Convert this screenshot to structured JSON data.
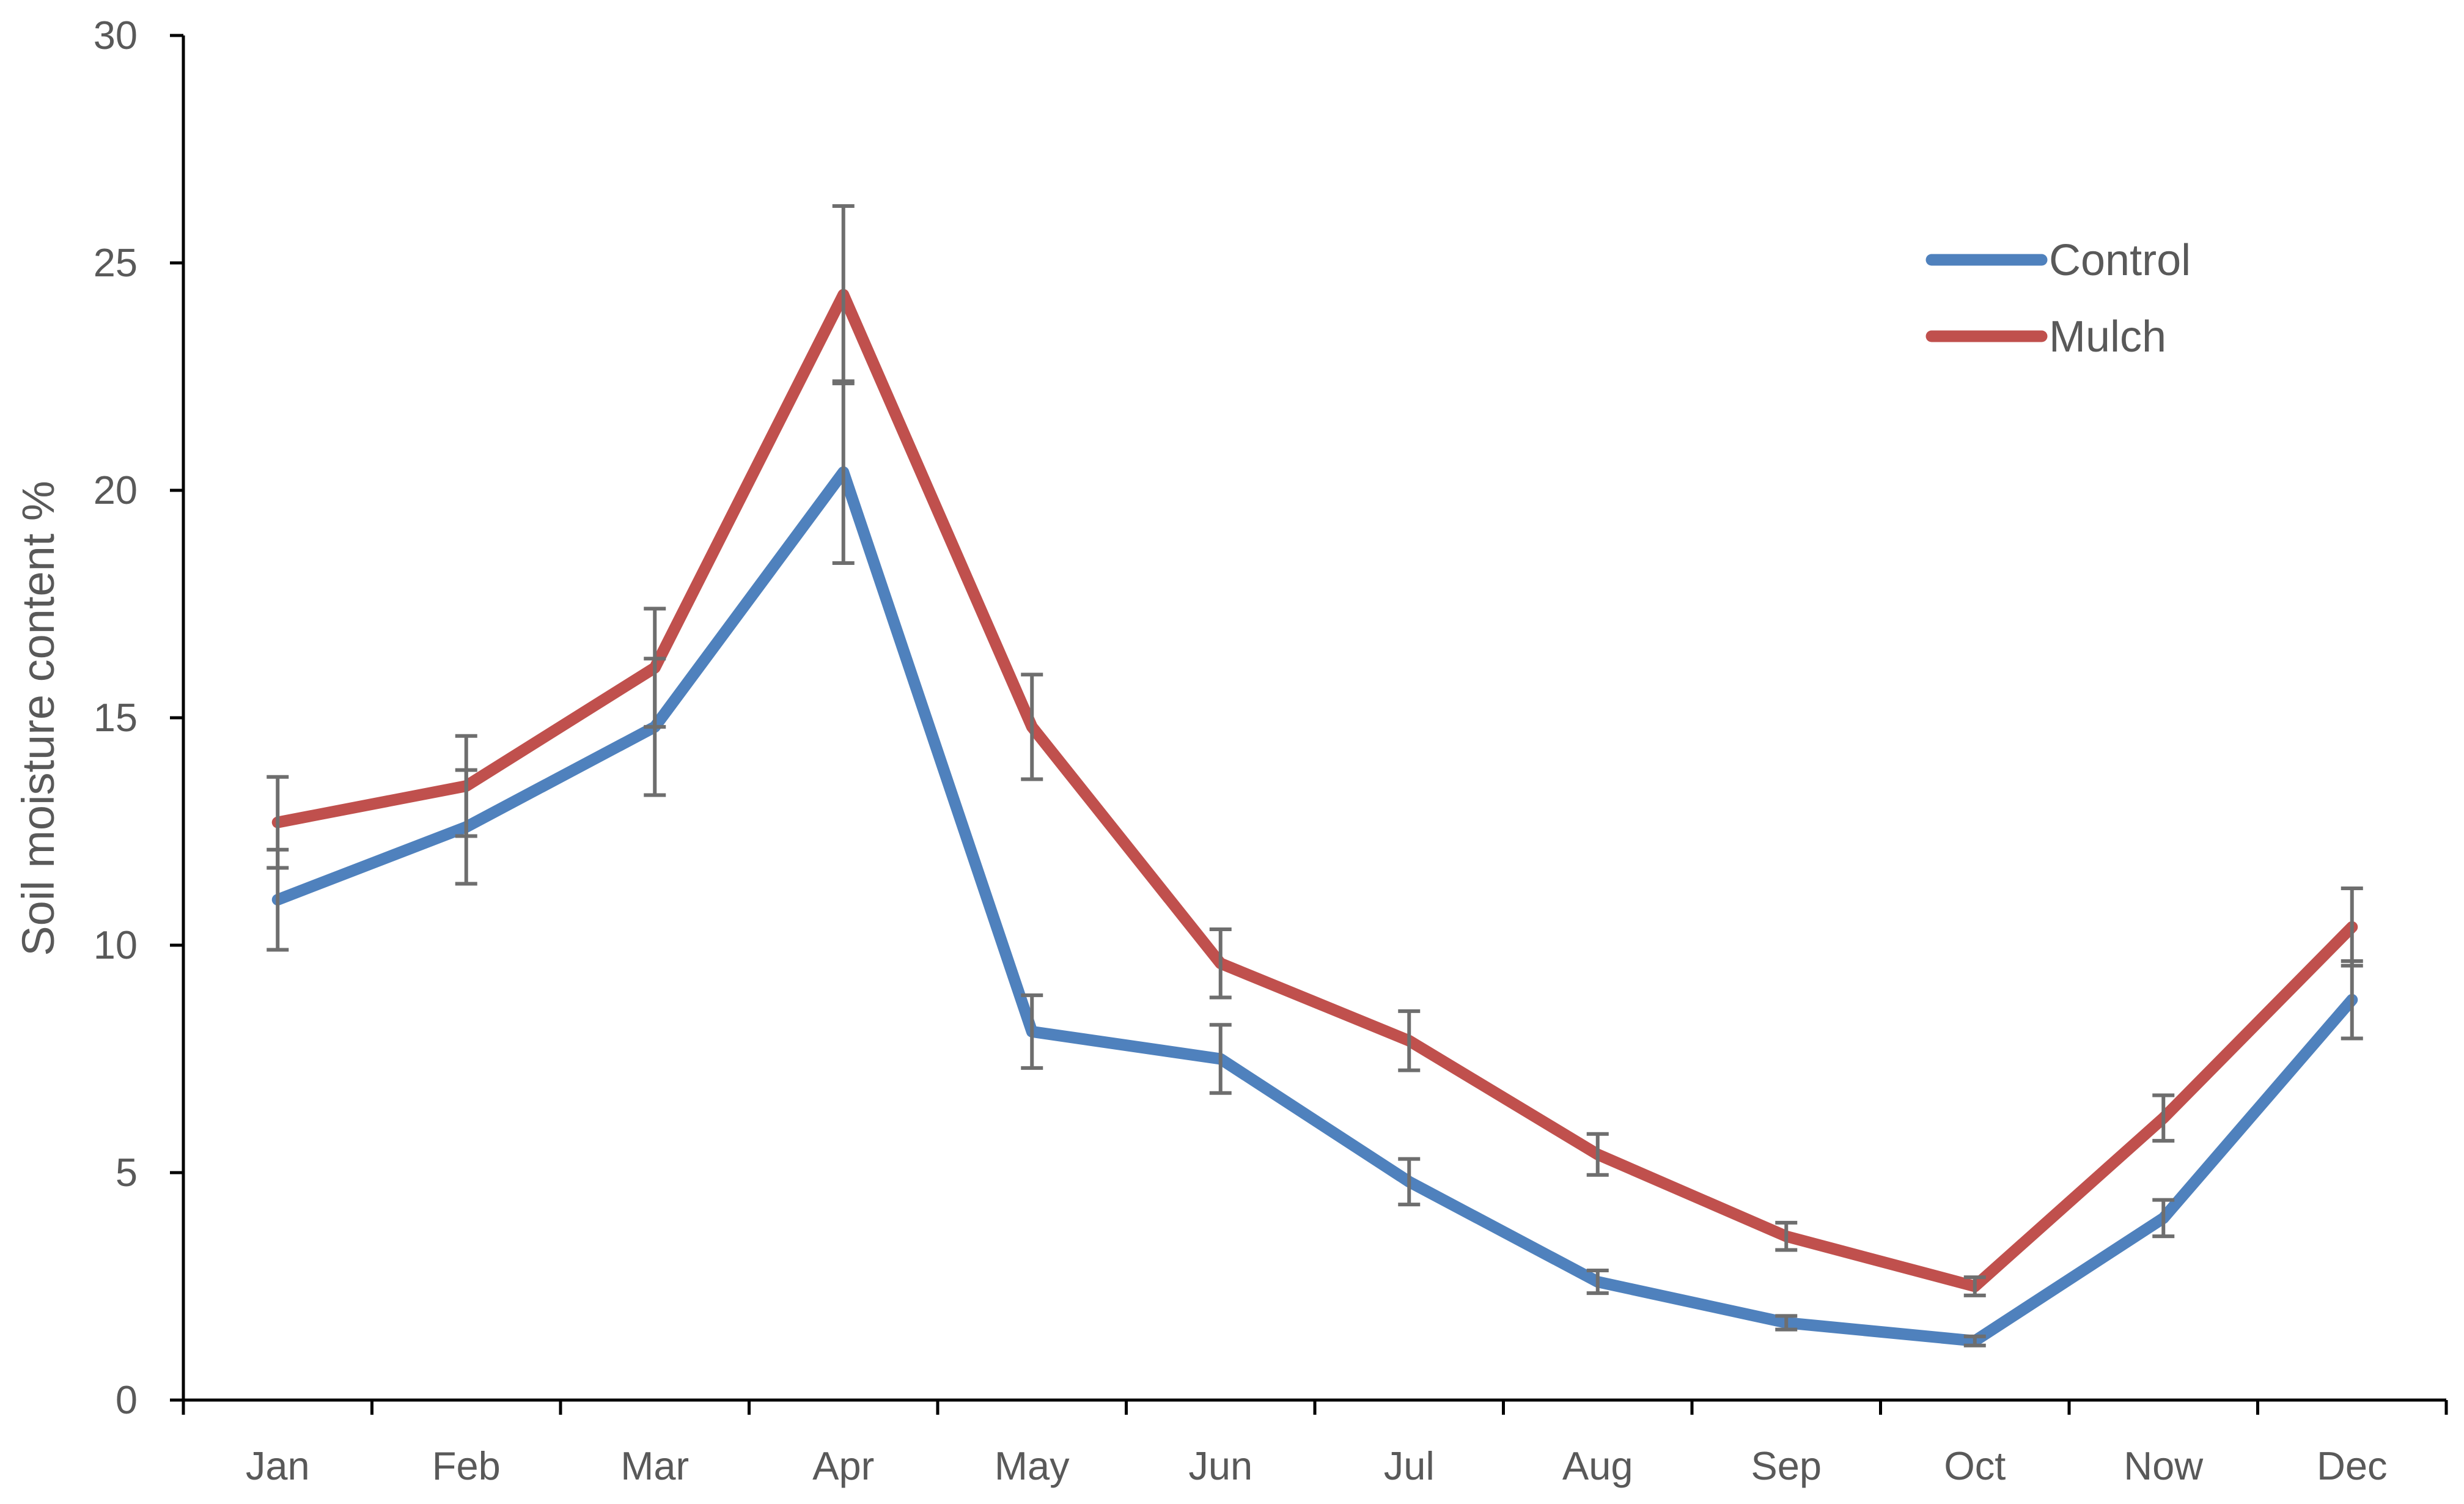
{
  "chart_data": {
    "type": "line",
    "title": "",
    "xlabel": "",
    "ylabel": "Soil moisture content %",
    "ylim": [
      0,
      30
    ],
    "yticks": [
      0,
      5,
      10,
      15,
      20,
      25,
      30
    ],
    "categories": [
      "Jan",
      "Feb",
      "Mar",
      "Apr",
      "May",
      "Jun",
      "Jul",
      "Aug",
      "Sep",
      "Oct",
      "Now",
      "Dec"
    ],
    "grid": false,
    "legend_position": "top-right",
    "series": [
      {
        "name": "Control",
        "color": "#4F81BD",
        "values": [
          11.0,
          12.6,
          14.8,
          20.4,
          8.1,
          7.5,
          4.8,
          2.6,
          1.7,
          1.3,
          4.0,
          8.8
        ],
        "error": [
          1.1,
          1.25,
          1.5,
          2.0,
          0.8,
          0.75,
          0.5,
          0.25,
          0.15,
          0.1,
          0.4,
          0.85
        ]
      },
      {
        "name": "Mulch",
        "color": "#C0504D",
        "values": [
          12.7,
          13.5,
          16.1,
          24.3,
          14.8,
          9.6,
          7.9,
          5.4,
          3.6,
          2.5,
          6.2,
          10.4
        ],
        "error": [
          1.0,
          1.1,
          1.3,
          1.95,
          1.15,
          0.75,
          0.65,
          0.45,
          0.3,
          0.2,
          0.5,
          0.85
        ]
      }
    ],
    "error_bar_color": "#6E6E6E"
  }
}
